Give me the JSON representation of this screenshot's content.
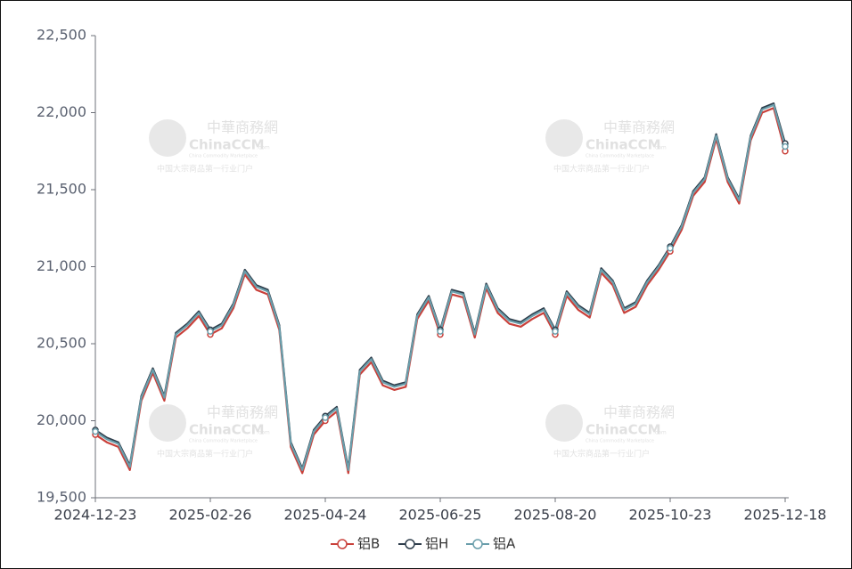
{
  "chart_data": {
    "type": "line",
    "categories": [
      "2024-12-23",
      null,
      null,
      null,
      null,
      null,
      null,
      null,
      null,
      null,
      "2025-02-26",
      null,
      null,
      null,
      null,
      null,
      null,
      null,
      null,
      null,
      "2025-04-24",
      null,
      null,
      null,
      null,
      null,
      null,
      null,
      null,
      null,
      "2025-06-25",
      null,
      null,
      null,
      null,
      null,
      null,
      null,
      null,
      null,
      "2025-08-20",
      null,
      null,
      null,
      null,
      null,
      null,
      null,
      null,
      null,
      "2025-10-23",
      null,
      null,
      null,
      null,
      null,
      null,
      null,
      null,
      null,
      "2025-12-18"
    ],
    "series": [
      {
        "name": "铝B",
        "color": "#c9403a",
        "values": [
          19910,
          19860,
          19830,
          19680,
          20130,
          20310,
          20130,
          20540,
          20600,
          20680,
          20560,
          20600,
          20730,
          20950,
          20850,
          20820,
          20590,
          19830,
          19660,
          19910,
          20000,
          20060,
          19660,
          20300,
          20380,
          20230,
          20200,
          20220,
          20660,
          20780,
          20560,
          20820,
          20800,
          20540,
          20860,
          20700,
          20630,
          20610,
          20660,
          20700,
          20560,
          20810,
          20720,
          20670,
          20960,
          20880,
          20700,
          20740,
          20880,
          20980,
          21100,
          21240,
          21460,
          21550,
          21830,
          21550,
          21410,
          21820,
          22000,
          22030,
          21750
        ]
      },
      {
        "name": "铝H",
        "color": "#2f3e4c",
        "values": [
          19940,
          19890,
          19860,
          19710,
          20160,
          20340,
          20160,
          20570,
          20630,
          20710,
          20590,
          20630,
          20760,
          20980,
          20880,
          20850,
          20620,
          19860,
          19690,
          19940,
          20030,
          20090,
          19690,
          20330,
          20410,
          20260,
          20230,
          20250,
          20690,
          20810,
          20590,
          20850,
          20830,
          20570,
          20890,
          20730,
          20660,
          20640,
          20690,
          20730,
          20590,
          20840,
          20750,
          20700,
          20990,
          20910,
          20730,
          20770,
          20910,
          21010,
          21130,
          21270,
          21490,
          21580,
          21860,
          21580,
          21440,
          21850,
          22030,
          22060,
          21800
        ]
      },
      {
        "name": "铝A",
        "color": "#6a9eab",
        "values": [
          19930,
          19880,
          19850,
          19700,
          20150,
          20330,
          20150,
          20560,
          20620,
          20700,
          20580,
          20620,
          20750,
          20970,
          20870,
          20840,
          20610,
          19850,
          19680,
          19930,
          20020,
          20080,
          19680,
          20320,
          20400,
          20250,
          20220,
          20240,
          20680,
          20800,
          20580,
          20840,
          20820,
          20560,
          20880,
          20720,
          20650,
          20630,
          20680,
          20720,
          20580,
          20830,
          20740,
          20690,
          20980,
          20900,
          20720,
          20760,
          20900,
          21000,
          21120,
          21260,
          21480,
          21570,
          21850,
          21570,
          21430,
          21840,
          22020,
          22050,
          21780
        ]
      }
    ],
    "ylim": [
      19500,
      22500
    ],
    "yticks": [
      {
        "value": 19500,
        "label": "19,500"
      },
      {
        "value": 20000,
        "label": "20,000"
      },
      {
        "value": 20500,
        "label": "20,500"
      },
      {
        "value": 21000,
        "label": "21,000"
      },
      {
        "value": 21500,
        "label": "21,500"
      },
      {
        "value": 22000,
        "label": "22,000"
      },
      {
        "value": 22500,
        "label": "22,500"
      }
    ],
    "grid": false,
    "legend": "bottom"
  },
  "watermark": {
    "name_cn": "中華商務網",
    "brand": "ChinaCCM",
    "brand_suffix": ".com",
    "tagline_en": "China Commodity Marketplace",
    "tagline_cn": "中国大宗商品第一行业门户"
  }
}
